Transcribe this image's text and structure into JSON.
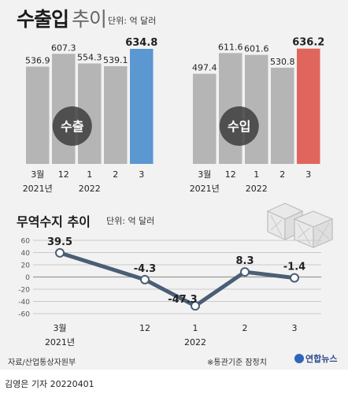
{
  "header": {
    "title_bold": "수출입",
    "title_light": "추이",
    "unit": "단위: 억 달러"
  },
  "section2": {
    "title": "무역수지 추이",
    "unit": "단위: 억 달러"
  },
  "footer": {
    "source": "자료/산업통상자원부",
    "note": "※통관기준 잠정치",
    "logo": "연합뉴스",
    "credit": "김영은 기자  20220401"
  },
  "chart_data": [
    {
      "type": "bar",
      "name": "수출",
      "categories": [
        "3월",
        "12",
        "1",
        "2",
        "3"
      ],
      "year_labels": [
        "2021년",
        "2022"
      ],
      "values": [
        536.9,
        607.3,
        554.3,
        539.1,
        634.8
      ],
      "value_labels": [
        "536.9",
        "607.3",
        "554.3",
        "539.1",
        "634.8"
      ],
      "colors": {
        "base": "#b5b5b5",
        "highlight": "#5b97d1"
      }
    },
    {
      "type": "bar",
      "name": "수입",
      "categories": [
        "3월",
        "12",
        "1",
        "2",
        "3"
      ],
      "year_labels": [
        "2021년",
        "2022"
      ],
      "values": [
        497.4,
        611.6,
        601.6,
        530.8,
        636.2
      ],
      "value_labels": [
        "497.4",
        "611.6",
        "601.6",
        "530.8",
        "636.2"
      ],
      "colors": {
        "base": "#b5b5b5",
        "highlight": "#e0665d"
      }
    },
    {
      "type": "line",
      "categories": [
        "3월",
        "12",
        "1",
        "2",
        "3"
      ],
      "year_labels": [
        "2021년",
        "2022"
      ],
      "values": [
        39.5,
        -4.3,
        -47.3,
        8.3,
        -1.4
      ],
      "value_labels": [
        "39.5",
        "-4.3",
        "-47.3",
        "8.3",
        "-1.4"
      ],
      "y_ticks": [
        "60",
        "40",
        "20",
        "0",
        "-20",
        "-40",
        "-60"
      ],
      "ylim": [
        -60,
        60
      ],
      "grid": true,
      "colors": {
        "line": "#4a5e75",
        "grid": "#c9c9c9"
      }
    }
  ]
}
